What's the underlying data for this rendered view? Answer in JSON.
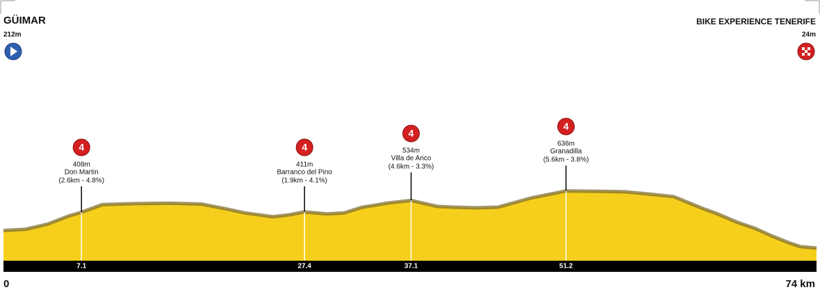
{
  "chart_data": {
    "type": "area",
    "start": {
      "name": "GÜIMAR",
      "altitude": "212m"
    },
    "finish": {
      "name": "BIKE EXPERIENCE TENERIFE",
      "altitude": "24m"
    },
    "x": [
      0,
      2,
      4,
      6,
      7.1,
      9,
      12,
      15,
      18,
      20,
      22,
      24.5,
      26,
      27.4,
      29.4,
      31,
      32.6,
      35,
      37.1,
      39.5,
      41,
      43,
      45,
      48,
      51.2,
      54,
      56.6,
      59,
      61,
      63.6,
      65,
      66.8,
      68.5,
      70,
      71.5,
      72.5,
      74
    ],
    "values": [
      212,
      225,
      280,
      370,
      408,
      490,
      500,
      505,
      495,
      450,
      400,
      360,
      380,
      411,
      390,
      400,
      460,
      507,
      534,
      470,
      462,
      455,
      462,
      560,
      636,
      632,
      627,
      600,
      575,
      450,
      390,
      300,
      230,
      150,
      80,
      40,
      24
    ],
    "color": "#f5cf1c",
    "xlim": [
      0,
      74
    ],
    "ylim": [
      0,
      2600
    ],
    "xticks": [
      0,
      {
        "value": 74,
        "label": "74 km"
      }
    ],
    "climbs": [
      {
        "km": 7.1,
        "category": 4,
        "altitude": "408m",
        "name": "Don Martin",
        "detail": "(2.6km - 4.8%)"
      },
      {
        "km": 27.4,
        "category": 4,
        "altitude": "411m",
        "name": "Barranco del Pino",
        "detail": "(1.9km - 4.1%)"
      },
      {
        "km": 37.1,
        "category": 4,
        "altitude": "534m",
        "name": "Villa de Arico",
        "detail": "(4.6km - 3.3%)"
      },
      {
        "km": 51.2,
        "category": 4,
        "altitude": "636m",
        "name": "Granadilla",
        "detail": "(5.6km - 3.8%)"
      }
    ]
  }
}
